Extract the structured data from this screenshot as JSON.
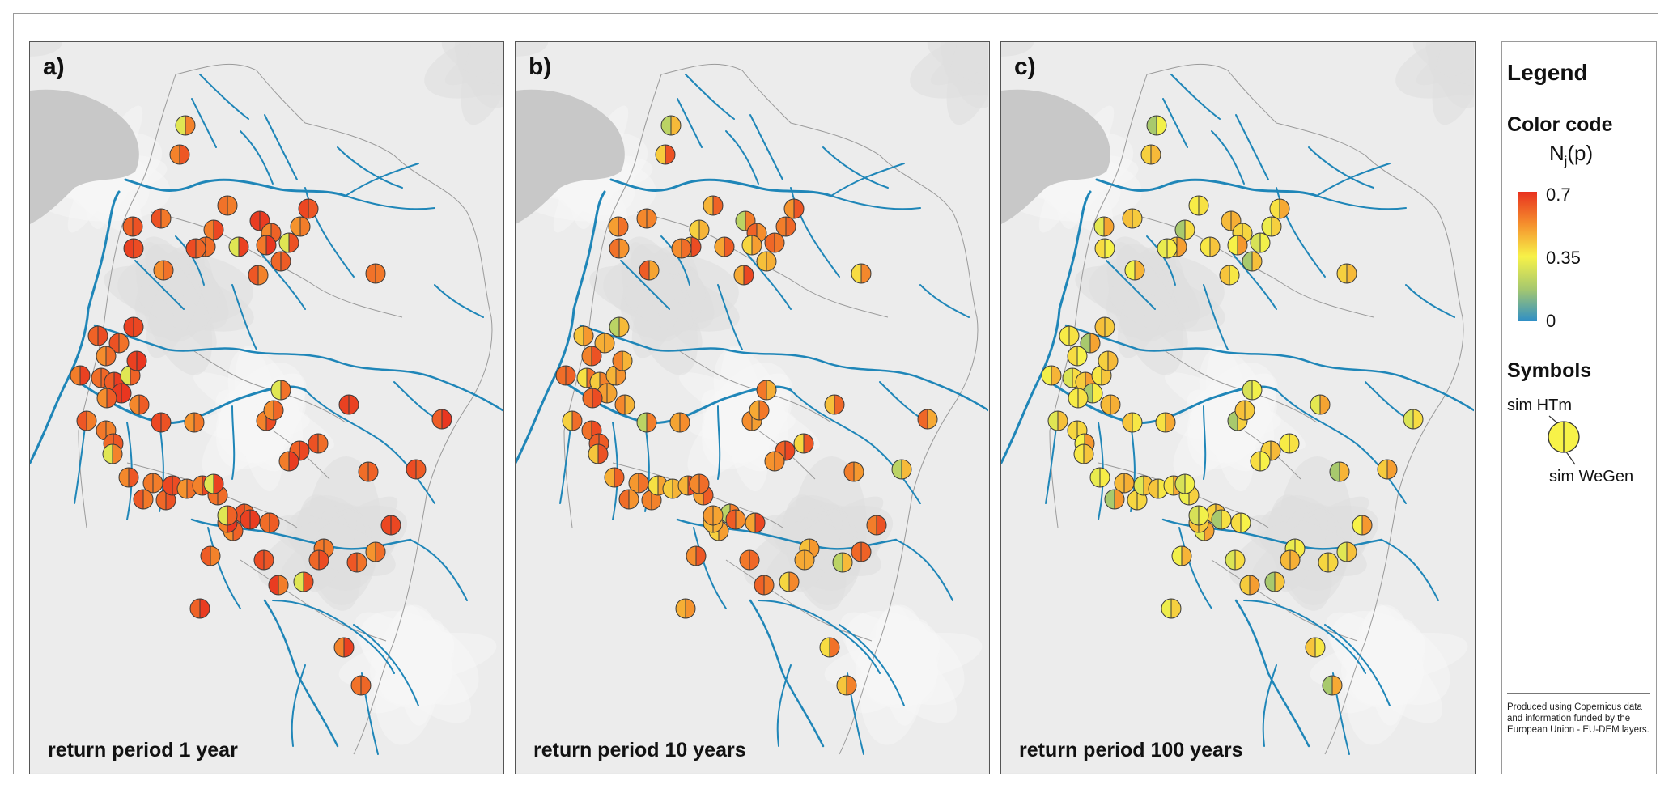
{
  "panels": [
    {
      "letter": "a)",
      "caption": "return period 1 year"
    },
    {
      "letter": "b)",
      "caption": "return period 10 years"
    },
    {
      "letter": "c)",
      "caption": "return period 100  years"
    }
  ],
  "legend": {
    "title": "Legend",
    "color_heading": "Color code",
    "variable_main": "N",
    "variable_sub": "j",
    "variable_tail": "(p)",
    "scale_max": "0.7",
    "scale_mid": "0.35",
    "scale_min": "0",
    "symbols_heading": "Symbols",
    "sym_left": "sim HTm",
    "sym_right": "sim WeGen",
    "credit": "Produced using Copernicus data and information funded by the European Union - EU-DEM layers."
  },
  "colors": {
    "river": "#1f86b8",
    "lake": "#c8c8c8",
    "terrain": "#ececec",
    "ramp": [
      "#2f8fc6",
      "#a6c86e",
      "#f7f248",
      "#f5902d",
      "#e8311f"
    ]
  }
}
